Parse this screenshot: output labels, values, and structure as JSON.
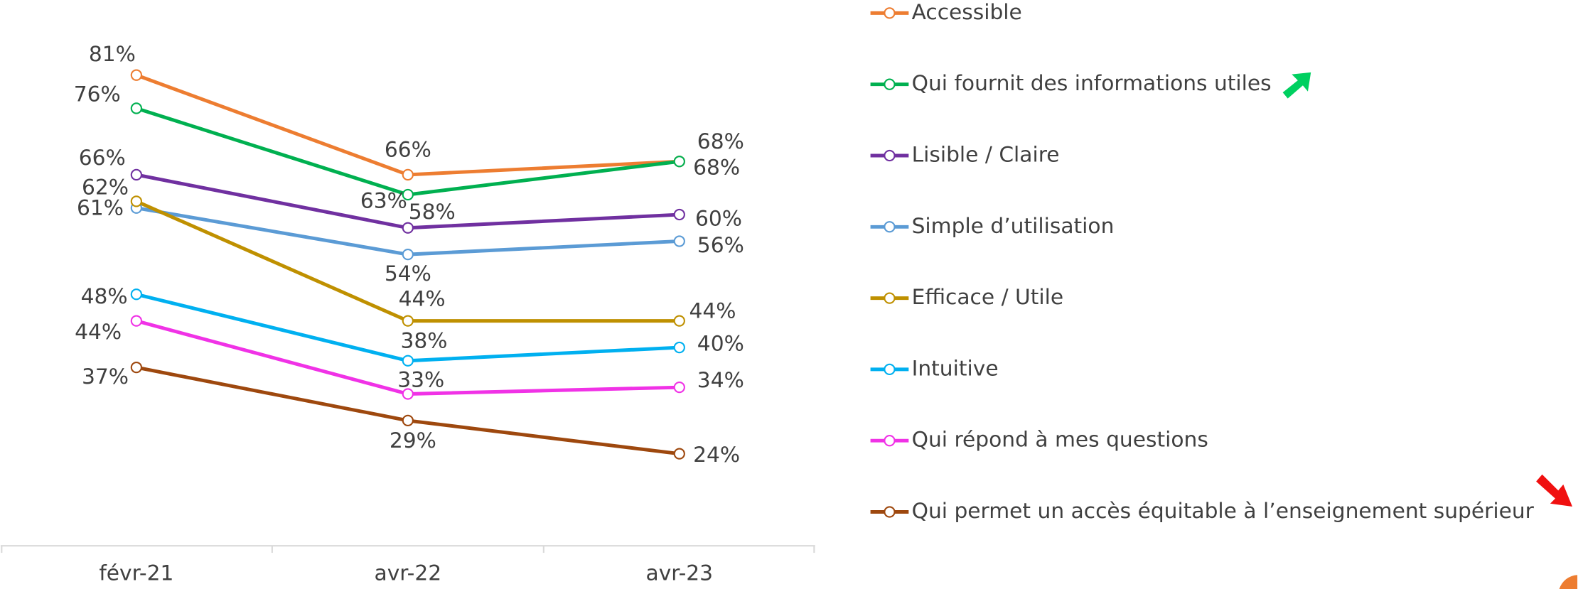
{
  "chart_data": {
    "type": "line",
    "categories": [
      "févr-21",
      "avr-22",
      "avr-23"
    ],
    "ylim": [
      10,
      92
    ],
    "legend": "right",
    "series": [
      {
        "name": "Accessible",
        "color": "#ED7D31",
        "values": [
          81,
          66,
          68
        ],
        "value_labels": [
          "81%",
          "66%",
          "68%"
        ]
      },
      {
        "name": "Qui fournit des informations utiles",
        "color": "#00B050",
        "values": [
          76,
          63,
          68
        ],
        "value_labels": [
          "76%",
          "63%",
          "68%"
        ]
      },
      {
        "name": "Lisible / Claire",
        "color": "#7030A0",
        "values": [
          66,
          58,
          60
        ],
        "value_labels": [
          "66%",
          "58%",
          "60%"
        ]
      },
      {
        "name": "Simple d’utilisation",
        "color": "#5B9BD5",
        "values": [
          61,
          54,
          56
        ],
        "value_labels": [
          "61%",
          "54%",
          "56%"
        ]
      },
      {
        "name": "Efficace / Utile",
        "color": "#BF9000",
        "values": [
          62,
          44,
          44
        ],
        "value_labels": [
          "62%",
          "44%",
          "44%"
        ]
      },
      {
        "name": "Intuitive",
        "color": "#00B0F0",
        "values": [
          48,
          38,
          40
        ],
        "value_labels": [
          "48%",
          "38%",
          "40%"
        ]
      },
      {
        "name": "Qui répond à mes questions",
        "color": "#F032E6",
        "values": [
          44,
          33,
          34
        ],
        "value_labels": [
          "44%",
          "33%",
          "34%"
        ]
      },
      {
        "name": "Qui permet un accès équitable à l’enseignement supérieur",
        "color": "#9E480E",
        "values": [
          37,
          29,
          24
        ],
        "value_labels": [
          "37%",
          "29%",
          "24%"
        ]
      }
    ]
  }
}
